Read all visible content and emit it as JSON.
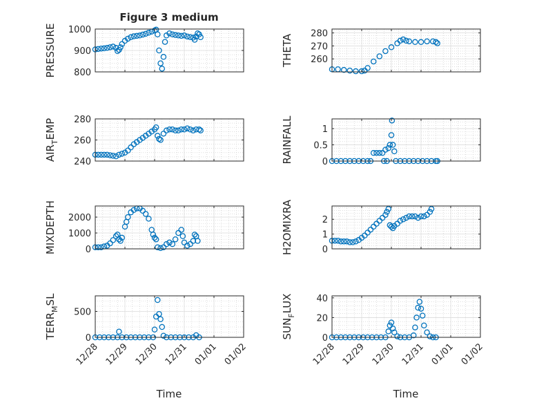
{
  "figure": {
    "title": "Figure 3 medium",
    "xlabel": "Time",
    "marker_color": "#0072BD",
    "x_ticks": [
      "12/28",
      "12/29",
      "12/30",
      "12/31",
      "01/01",
      "01/02"
    ]
  },
  "chart_data": [
    {
      "type": "scatter",
      "name": "pressure",
      "ylabel": "PRESSURE",
      "ylim": [
        800,
        1000
      ],
      "yticks": [
        800,
        900,
        1000
      ],
      "ytick_labels": [
        "800",
        "900",
        "1000"
      ],
      "xlim": [
        0,
        5
      ],
      "x_unit": "days since 12/28",
      "grid": true,
      "points": [
        [
          0,
          905
        ],
        [
          0.1,
          907
        ],
        [
          0.2,
          909
        ],
        [
          0.3,
          910
        ],
        [
          0.4,
          912
        ],
        [
          0.5,
          915
        ],
        [
          0.6,
          918
        ],
        [
          0.7,
          912
        ],
        [
          0.75,
          897
        ],
        [
          0.8,
          903
        ],
        [
          0.85,
          915
        ],
        [
          0.9,
          930
        ],
        [
          1.0,
          945
        ],
        [
          1.1,
          955
        ],
        [
          1.2,
          962
        ],
        [
          1.3,
          966
        ],
        [
          1.4,
          968
        ],
        [
          1.5,
          970
        ],
        [
          1.6,
          974
        ],
        [
          1.7,
          978
        ],
        [
          1.8,
          983
        ],
        [
          1.9,
          988
        ],
        [
          2.0,
          993
        ],
        [
          2.05,
          997
        ],
        [
          2.1,
          975
        ],
        [
          2.15,
          900
        ],
        [
          2.2,
          840
        ],
        [
          2.25,
          815
        ],
        [
          2.3,
          870
        ],
        [
          2.35,
          940
        ],
        [
          2.4,
          970
        ],
        [
          2.5,
          980
        ],
        [
          2.6,
          975
        ],
        [
          2.7,
          972
        ],
        [
          2.8,
          970
        ],
        [
          2.9,
          968
        ],
        [
          3.0,
          970
        ],
        [
          3.1,
          965
        ],
        [
          3.2,
          962
        ],
        [
          3.3,
          960
        ],
        [
          3.35,
          950
        ],
        [
          3.4,
          965
        ],
        [
          3.45,
          980
        ],
        [
          3.5,
          975
        ],
        [
          3.55,
          962
        ]
      ]
    },
    {
      "type": "scatter",
      "name": "theta",
      "ylabel": "THETA",
      "ylim": [
        250,
        283
      ],
      "yticks": [
        260,
        270,
        280
      ],
      "ytick_labels": [
        "260",
        "270",
        "280"
      ],
      "xlim": [
        0,
        5
      ],
      "grid": true,
      "points": [
        [
          0,
          252
        ],
        [
          0.2,
          252
        ],
        [
          0.4,
          251.5
        ],
        [
          0.6,
          251
        ],
        [
          0.8,
          250.5
        ],
        [
          1.0,
          250.5
        ],
        [
          1.1,
          251
        ],
        [
          1.2,
          253
        ],
        [
          1.4,
          258
        ],
        [
          1.6,
          262
        ],
        [
          1.8,
          266
        ],
        [
          2.0,
          269
        ],
        [
          2.2,
          272
        ],
        [
          2.3,
          274
        ],
        [
          2.4,
          275
        ],
        [
          2.5,
          274
        ],
        [
          2.6,
          273.5
        ],
        [
          2.8,
          273
        ],
        [
          3.0,
          273
        ],
        [
          3.2,
          273.5
        ],
        [
          3.4,
          273.5
        ],
        [
          3.5,
          273
        ],
        [
          3.55,
          272
        ]
      ]
    },
    {
      "type": "scatter",
      "name": "air_temp",
      "ylabel": "AIR_TEMP",
      "ylim": [
        240,
        280
      ],
      "yticks": [
        240,
        260,
        280
      ],
      "ytick_labels": [
        "240",
        "260",
        "280"
      ],
      "xlim": [
        0,
        5
      ],
      "grid": true,
      "points": [
        [
          0,
          246
        ],
        [
          0.1,
          246
        ],
        [
          0.2,
          246
        ],
        [
          0.3,
          246
        ],
        [
          0.4,
          246
        ],
        [
          0.5,
          245.5
        ],
        [
          0.6,
          245
        ],
        [
          0.7,
          244.5
        ],
        [
          0.8,
          246
        ],
        [
          0.9,
          247
        ],
        [
          1.0,
          248
        ],
        [
          1.1,
          250
        ],
        [
          1.2,
          253
        ],
        [
          1.3,
          256
        ],
        [
          1.4,
          258
        ],
        [
          1.5,
          260
        ],
        [
          1.6,
          262
        ],
        [
          1.7,
          264
        ],
        [
          1.8,
          266
        ],
        [
          1.9,
          268
        ],
        [
          2.0,
          270
        ],
        [
          2.05,
          272
        ],
        [
          2.1,
          264
        ],
        [
          2.15,
          261
        ],
        [
          2.2,
          260
        ],
        [
          2.3,
          266
        ],
        [
          2.4,
          269
        ],
        [
          2.5,
          270
        ],
        [
          2.6,
          270
        ],
        [
          2.7,
          269
        ],
        [
          2.8,
          269
        ],
        [
          2.9,
          270
        ],
        [
          3.0,
          270
        ],
        [
          3.1,
          271
        ],
        [
          3.2,
          270
        ],
        [
          3.3,
          269
        ],
        [
          3.4,
          270
        ],
        [
          3.5,
          270
        ],
        [
          3.55,
          269
        ]
      ]
    },
    {
      "type": "scatter",
      "name": "rainfall",
      "ylabel": "RAINFALL",
      "ylim": [
        0,
        1.3
      ],
      "yticks": [
        0,
        0.5,
        1
      ],
      "ytick_labels": [
        "0",
        "0.5",
        "1"
      ],
      "xlim": [
        0,
        5
      ],
      "grid": true,
      "points": [
        [
          0,
          0
        ],
        [
          0.15,
          0
        ],
        [
          0.3,
          0
        ],
        [
          0.45,
          0
        ],
        [
          0.6,
          0
        ],
        [
          0.75,
          0
        ],
        [
          0.9,
          0
        ],
        [
          1.05,
          0
        ],
        [
          1.2,
          0
        ],
        [
          1.3,
          0
        ],
        [
          1.4,
          0.25
        ],
        [
          1.5,
          0.25
        ],
        [
          1.6,
          0.25
        ],
        [
          1.7,
          0.25
        ],
        [
          1.75,
          0
        ],
        [
          1.8,
          0.35
        ],
        [
          1.85,
          0
        ],
        [
          1.9,
          0.4
        ],
        [
          1.95,
          0.5
        ],
        [
          2.0,
          0.8
        ],
        [
          2.02,
          1.25
        ],
        [
          2.05,
          0.5
        ],
        [
          2.1,
          0.3
        ],
        [
          2.15,
          0
        ],
        [
          2.3,
          0
        ],
        [
          2.45,
          0
        ],
        [
          2.6,
          0
        ],
        [
          2.75,
          0
        ],
        [
          2.9,
          0
        ],
        [
          3.05,
          0
        ],
        [
          3.2,
          0
        ],
        [
          3.35,
          0
        ],
        [
          3.5,
          0
        ],
        [
          3.55,
          0
        ]
      ]
    },
    {
      "type": "scatter",
      "name": "mixdepth",
      "ylabel": "MIXDEPTH",
      "ylim": [
        0,
        2700
      ],
      "yticks": [
        0,
        1000,
        2000
      ],
      "ytick_labels": [
        "0",
        "1000",
        "2000"
      ],
      "xlim": [
        0,
        5
      ],
      "grid": true,
      "points": [
        [
          0,
          100
        ],
        [
          0.1,
          100
        ],
        [
          0.2,
          100
        ],
        [
          0.3,
          150
        ],
        [
          0.4,
          200
        ],
        [
          0.5,
          350
        ],
        [
          0.6,
          550
        ],
        [
          0.7,
          800
        ],
        [
          0.75,
          900
        ],
        [
          0.8,
          600
        ],
        [
          0.85,
          500
        ],
        [
          0.9,
          700
        ],
        [
          1.0,
          1400
        ],
        [
          1.05,
          1700
        ],
        [
          1.1,
          2000
        ],
        [
          1.2,
          2300
        ],
        [
          1.3,
          2450
        ],
        [
          1.4,
          2550
        ],
        [
          1.5,
          2550
        ],
        [
          1.6,
          2400
        ],
        [
          1.7,
          2200
        ],
        [
          1.8,
          1900
        ],
        [
          1.9,
          1200
        ],
        [
          1.95,
          900
        ],
        [
          2.0,
          700
        ],
        [
          2.05,
          600
        ],
        [
          2.1,
          100
        ],
        [
          2.2,
          50
        ],
        [
          2.3,
          100
        ],
        [
          2.4,
          300
        ],
        [
          2.5,
          400
        ],
        [
          2.6,
          300
        ],
        [
          2.7,
          600
        ],
        [
          2.8,
          1000
        ],
        [
          2.9,
          1200
        ],
        [
          2.95,
          800
        ],
        [
          3.0,
          400
        ],
        [
          3.1,
          200
        ],
        [
          3.2,
          300
        ],
        [
          3.3,
          500
        ],
        [
          3.35,
          900
        ],
        [
          3.4,
          800
        ],
        [
          3.45,
          500
        ]
      ]
    },
    {
      "type": "scatter",
      "name": "h2omixra",
      "ylabel": "H2OMIXRA",
      "ylim": [
        0,
        2.9
      ],
      "yticks": [
        0,
        1,
        2
      ],
      "ytick_labels": [
        "0",
        "1",
        "2"
      ],
      "xlim": [
        0,
        5
      ],
      "grid": true,
      "points": [
        [
          0,
          0.55
        ],
        [
          0.1,
          0.55
        ],
        [
          0.2,
          0.55
        ],
        [
          0.3,
          0.5
        ],
        [
          0.4,
          0.5
        ],
        [
          0.5,
          0.5
        ],
        [
          0.6,
          0.45
        ],
        [
          0.7,
          0.45
        ],
        [
          0.8,
          0.5
        ],
        [
          0.9,
          0.6
        ],
        [
          1.0,
          0.75
        ],
        [
          1.1,
          0.9
        ],
        [
          1.2,
          1.1
        ],
        [
          1.3,
          1.3
        ],
        [
          1.4,
          1.5
        ],
        [
          1.5,
          1.7
        ],
        [
          1.6,
          1.9
        ],
        [
          1.7,
          2.1
        ],
        [
          1.8,
          2.3
        ],
        [
          1.85,
          2.5
        ],
        [
          1.9,
          2.7
        ],
        [
          1.95,
          1.6
        ],
        [
          2.0,
          1.5
        ],
        [
          2.05,
          1.4
        ],
        [
          2.1,
          1.55
        ],
        [
          2.2,
          1.7
        ],
        [
          2.3,
          1.9
        ],
        [
          2.4,
          2.0
        ],
        [
          2.5,
          2.1
        ],
        [
          2.6,
          2.2
        ],
        [
          2.7,
          2.2
        ],
        [
          2.8,
          2.2
        ],
        [
          2.9,
          2.1
        ],
        [
          3.0,
          2.2
        ],
        [
          3.1,
          2.2
        ],
        [
          3.2,
          2.3
        ],
        [
          3.3,
          2.5
        ],
        [
          3.35,
          2.7
        ]
      ]
    },
    {
      "type": "scatter",
      "name": "terr_msl",
      "ylabel": "TERR_MSL",
      "ylim": [
        0,
        800
      ],
      "yticks": [
        0,
        500
      ],
      "ytick_labels": [
        "0",
        "500"
      ],
      "xlim": [
        0,
        5
      ],
      "grid": true,
      "points": [
        [
          0,
          0
        ],
        [
          0.15,
          0
        ],
        [
          0.3,
          0
        ],
        [
          0.45,
          0
        ],
        [
          0.6,
          0
        ],
        [
          0.75,
          0
        ],
        [
          0.8,
          110
        ],
        [
          0.9,
          0
        ],
        [
          1.05,
          0
        ],
        [
          1.2,
          0
        ],
        [
          1.35,
          0
        ],
        [
          1.5,
          0
        ],
        [
          1.65,
          0
        ],
        [
          1.8,
          0
        ],
        [
          1.95,
          0
        ],
        [
          2.0,
          150
        ],
        [
          2.05,
          400
        ],
        [
          2.1,
          720
        ],
        [
          2.15,
          450
        ],
        [
          2.2,
          350
        ],
        [
          2.25,
          200
        ],
        [
          2.3,
          30
        ],
        [
          2.4,
          0
        ],
        [
          2.55,
          0
        ],
        [
          2.7,
          0
        ],
        [
          2.85,
          0
        ],
        [
          3.0,
          0
        ],
        [
          3.15,
          0
        ],
        [
          3.3,
          0
        ],
        [
          3.4,
          40
        ],
        [
          3.5,
          0
        ]
      ]
    },
    {
      "type": "scatter",
      "name": "sun_flux",
      "ylabel": "SUN_FLUX",
      "ylim": [
        0,
        42
      ],
      "yticks": [
        0,
        20,
        40
      ],
      "ytick_labels": [
        "0",
        "20",
        "40"
      ],
      "xlim": [
        0,
        5
      ],
      "grid": true,
      "points": [
        [
          0,
          0
        ],
        [
          0.15,
          0
        ],
        [
          0.3,
          0
        ],
        [
          0.45,
          0
        ],
        [
          0.6,
          0
        ],
        [
          0.75,
          0
        ],
        [
          0.9,
          0
        ],
        [
          1.05,
          0
        ],
        [
          1.2,
          0
        ],
        [
          1.35,
          0
        ],
        [
          1.5,
          0
        ],
        [
          1.65,
          0
        ],
        [
          1.8,
          0
        ],
        [
          1.9,
          6
        ],
        [
          1.95,
          12
        ],
        [
          2.0,
          15
        ],
        [
          2.05,
          9
        ],
        [
          2.1,
          5
        ],
        [
          2.2,
          1
        ],
        [
          2.3,
          0
        ],
        [
          2.45,
          0
        ],
        [
          2.6,
          0
        ],
        [
          2.75,
          2
        ],
        [
          2.8,
          10
        ],
        [
          2.85,
          20
        ],
        [
          2.9,
          30
        ],
        [
          2.95,
          36
        ],
        [
          3.0,
          29
        ],
        [
          3.05,
          22
        ],
        [
          3.1,
          12
        ],
        [
          3.2,
          5
        ],
        [
          3.3,
          1
        ],
        [
          3.4,
          0
        ],
        [
          3.5,
          0
        ]
      ]
    }
  ]
}
